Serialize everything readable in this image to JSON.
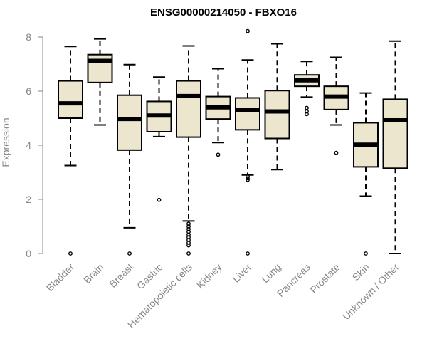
{
  "chart_data": {
    "type": "boxplot",
    "title": "ENSG00000214050 - FBXO16",
    "xlabel": "",
    "ylabel": "Expression",
    "ylim": [
      0,
      8.4
    ],
    "yticks": [
      0,
      2,
      4,
      6,
      8
    ],
    "box_fill": "#ede6cf",
    "categories": [
      "Bladder",
      "Brain",
      "Breast",
      "Gastric",
      "Hematopoietic cells",
      "Kidney",
      "Liver",
      "Lung",
      "Pancreas",
      "Prostate",
      "Skin",
      "Unknown / Other"
    ],
    "series": [
      {
        "name": "Bladder",
        "whisker_low": 3.25,
        "q1": 5.0,
        "median": 5.55,
        "q3": 6.38,
        "whisker_high": 7.65,
        "outliers": [
          0.0
        ]
      },
      {
        "name": "Brain",
        "whisker_low": 4.75,
        "q1": 6.32,
        "median": 7.12,
        "q3": 7.35,
        "whisker_high": 7.93,
        "outliers": []
      },
      {
        "name": "Breast",
        "whisker_low": 0.95,
        "q1": 3.82,
        "median": 4.97,
        "q3": 5.85,
        "whisker_high": 6.98,
        "outliers": [
          0.0
        ]
      },
      {
        "name": "Gastric",
        "whisker_low": 4.32,
        "q1": 4.5,
        "median": 5.1,
        "q3": 5.62,
        "whisker_high": 6.52,
        "outliers": [
          1.98
        ]
      },
      {
        "name": "Hematopoietic cells",
        "whisker_low": 1.2,
        "q1": 4.3,
        "median": 5.82,
        "q3": 6.38,
        "whisker_high": 7.67,
        "outliers": [
          1.1,
          1.0,
          0.9,
          0.8,
          0.7,
          0.6,
          0.5,
          0.4,
          0.3,
          0.0
        ]
      },
      {
        "name": "Kidney",
        "whisker_low": 4.1,
        "q1": 4.97,
        "median": 5.4,
        "q3": 5.8,
        "whisker_high": 6.83,
        "outliers": [
          3.65
        ]
      },
      {
        "name": "Liver",
        "whisker_low": 2.9,
        "q1": 4.57,
        "median": 5.3,
        "q3": 5.75,
        "whisker_high": 7.15,
        "outliers": [
          8.22,
          2.85,
          2.78,
          2.72,
          0.0
        ]
      },
      {
        "name": "Lung",
        "whisker_low": 3.1,
        "q1": 4.25,
        "median": 5.25,
        "q3": 6.02,
        "whisker_high": 7.75,
        "outliers": []
      },
      {
        "name": "Pancreas",
        "whisker_low": 5.78,
        "q1": 6.18,
        "median": 6.4,
        "q3": 6.6,
        "whisker_high": 7.1,
        "outliers": [
          5.38,
          5.25,
          5.15
        ]
      },
      {
        "name": "Prostate",
        "whisker_low": 4.75,
        "q1": 5.32,
        "median": 5.8,
        "q3": 6.18,
        "whisker_high": 7.25,
        "outliers": [
          3.72
        ]
      },
      {
        "name": "Skin",
        "whisker_low": 2.12,
        "q1": 3.2,
        "median": 4.02,
        "q3": 4.83,
        "whisker_high": 5.93,
        "outliers": [
          0.0
        ]
      },
      {
        "name": "Unknown / Other",
        "whisker_low": 0.0,
        "q1": 3.15,
        "median": 4.92,
        "q3": 5.7,
        "whisker_high": 7.85,
        "outliers": []
      }
    ]
  }
}
